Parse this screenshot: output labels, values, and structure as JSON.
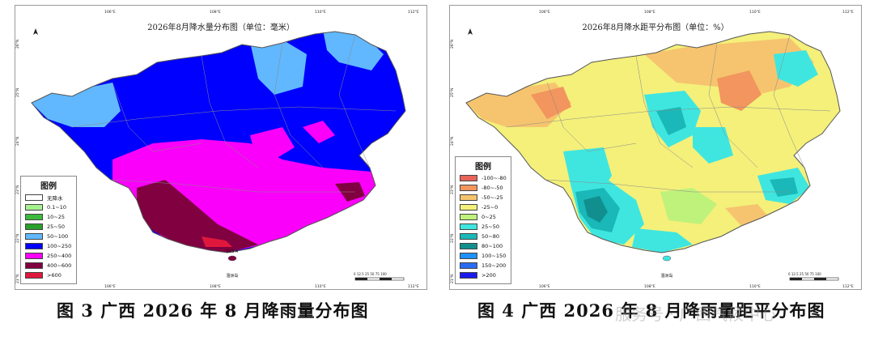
{
  "left_map": {
    "title": "2026年8月降水量分布图（单位：毫米）",
    "lon_ticks": [
      "106°E",
      "108°E",
      "110°E",
      "112°E"
    ],
    "lat_ticks": [
      "26°N",
      "25°N",
      "24°N",
      "23°N",
      "22°N",
      "21°N"
    ],
    "legend_title": "图例",
    "legend": [
      {
        "label": "无降水",
        "color": "#ffffff"
      },
      {
        "label": "0.1~10",
        "color": "#a6f28f"
      },
      {
        "label": "10~25",
        "color": "#3dba3d"
      },
      {
        "label": "25~50",
        "color": "#2aa02a"
      },
      {
        "label": "50~100",
        "color": "#61b8ff"
      },
      {
        "label": "100~250",
        "color": "#0000fe"
      },
      {
        "label": "250~400",
        "color": "#fa00fa"
      },
      {
        "label": "400~600",
        "color": "#800040"
      },
      {
        "label": ">600",
        "color": "#e0173c"
      }
    ],
    "place_label": "涠洲岛",
    "place_value": "523.4",
    "scale_label": "0 12.5 25   50   75   100"
  },
  "right_map": {
    "title": "2026年8月降水距平分布图（单位：%）",
    "lon_ticks": [
      "106°E",
      "108°E",
      "110°E",
      "112°E"
    ],
    "lat_ticks": [
      "26°N",
      "25°N",
      "24°N",
      "23°N",
      "22°N",
      "21°N"
    ],
    "legend_title": "图例",
    "legend": [
      {
        "label": "-100~-80",
        "color": "#e8635a"
      },
      {
        "label": "-80~-50",
        "color": "#f2955e"
      },
      {
        "label": "-50~-25",
        "color": "#f6c46e"
      },
      {
        "label": "-25~0",
        "color": "#f4f07a"
      },
      {
        "label": "0~25",
        "color": "#bff27a"
      },
      {
        "label": "25~50",
        "color": "#3fe6e0"
      },
      {
        "label": "50~80",
        "color": "#1ab8b8"
      },
      {
        "label": "80~100",
        "color": "#118f8f"
      },
      {
        "label": "100~150",
        "color": "#1e90ff"
      },
      {
        "label": "150~200",
        "color": "#2a6df2"
      },
      {
        "label": ">200",
        "color": "#1a1aee"
      }
    ],
    "place_label": "涠洲岛",
    "scale_label": "0 12.5 25   50   75   100"
  },
  "captions": {
    "left": "图 3 广西 2026 年 8 月降雨量分布图",
    "right": "图 4 广西 2026 年 8 月降雨量距平分布图"
  },
  "watermark": "服务号 · 广西气候中心"
}
